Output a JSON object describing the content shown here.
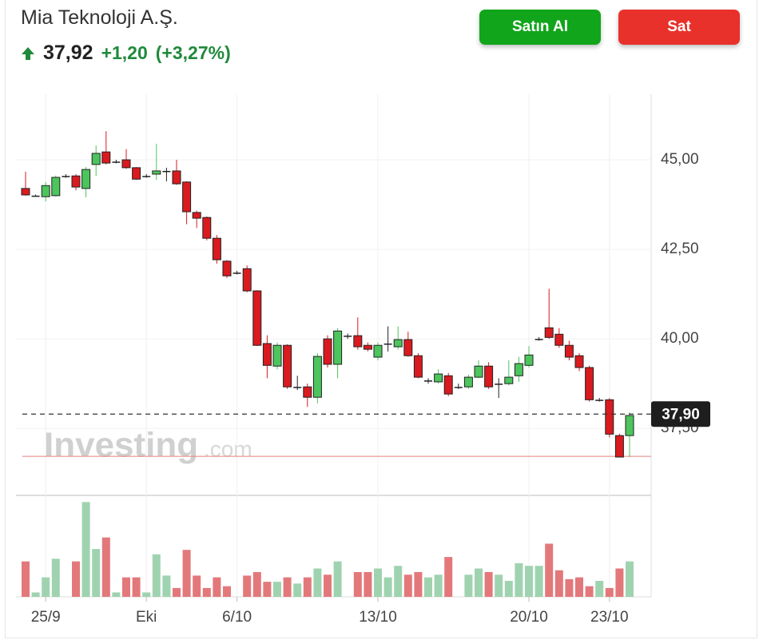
{
  "header": {
    "title": "Mia Teknoloji A.Ş.",
    "price": "37,92",
    "change": "+1,20",
    "change_percent": "(+3,27%)",
    "buy_button": "Satın Al",
    "sell_button": "Sat"
  },
  "chart_data": {
    "type": "candlestick",
    "watermark": "Investing",
    "watermark_suffix": ".com",
    "categories": [
      null,
      null,
      "25/9",
      null,
      null,
      null,
      null,
      null,
      null,
      null,
      null,
      null,
      "Eki",
      null,
      null,
      null,
      null,
      null,
      null,
      null,
      null,
      "6/10",
      null,
      null,
      null,
      null,
      null,
      null,
      null,
      null,
      null,
      null,
      null,
      null,
      null,
      "13/10",
      null,
      null,
      null,
      null,
      null,
      null,
      null,
      null,
      null,
      null,
      null,
      null,
      null,
      null,
      "20/10",
      null,
      null,
      null,
      null,
      null,
      null,
      null,
      "23/10",
      null,
      null
    ],
    "open": [
      44.2,
      44.0,
      43.97,
      44.0,
      44.55,
      44.55,
      44.2,
      44.87,
      45.22,
      44.95,
      45.0,
      44.78,
      44.55,
      44.6,
      44.69,
      44.69,
      44.38,
      43.53,
      43.39,
      42.81,
      42.17,
      41.85,
      41.96,
      41.34,
      39.87,
      39.24,
      39.82,
      38.66,
      38.66,
      38.37,
      40.0,
      39.29,
      40.09,
      40.09,
      39.82,
      39.49,
      39.87,
      39.78,
      39.98,
      39.53,
      38.84,
      38.8,
      38.97,
      38.66,
      38.66,
      38.93,
      39.24,
      38.75,
      38.75,
      38.97,
      39.26,
      40.0,
      40.31,
      40.13,
      39.82,
      39.53,
      39.2,
      38.3,
      38.3,
      37.3,
      37.3
    ],
    "high": [
      44.67,
      44.03,
      44.38,
      44.56,
      44.6,
      44.6,
      44.8,
      45.4,
      45.8,
      45.0,
      45.3,
      44.8,
      44.6,
      45.45,
      44.78,
      45.0,
      44.4,
      43.58,
      43.42,
      42.9,
      42.2,
      41.9,
      42.05,
      41.36,
      40.1,
      39.9,
      39.85,
      38.97,
      38.75,
      39.6,
      40.1,
      40.3,
      40.15,
      40.6,
      39.9,
      39.9,
      40.35,
      40.35,
      40.2,
      39.6,
      38.9,
      39.15,
      39.05,
      38.75,
      39.0,
      39.4,
      39.35,
      38.9,
      39.4,
      39.5,
      39.8,
      40.05,
      41.4,
      40.3,
      39.95,
      39.6,
      39.25,
      38.35,
      38.35,
      37.35,
      37.95
    ],
    "low": [
      44.0,
      43.97,
      43.84,
      43.97,
      44.5,
      44.15,
      43.95,
      44.55,
      44.87,
      44.9,
      44.75,
      44.44,
      44.5,
      44.44,
      44.4,
      44.3,
      43.2,
      43.1,
      42.75,
      42.1,
      41.7,
      41.8,
      41.3,
      39.8,
      38.9,
      39.15,
      38.6,
      38.57,
      38.1,
      38.2,
      39.2,
      38.9,
      40.0,
      39.7,
      39.65,
      39.4,
      39.65,
      39.7,
      39.5,
      38.9,
      38.75,
      38.75,
      38.4,
      38.6,
      38.6,
      38.9,
      38.6,
      38.35,
      38.7,
      38.8,
      39.2,
      39.95,
      40.0,
      39.75,
      39.4,
      39.1,
      38.25,
      38.25,
      37.25,
      36.7,
      36.7
    ],
    "close": [
      44.02,
      44.0,
      44.28,
      44.51,
      44.55,
      44.24,
      44.73,
      45.18,
      44.91,
      44.95,
      44.78,
      44.46,
      44.55,
      44.69,
      44.69,
      44.33,
      43.55,
      43.37,
      42.81,
      42.21,
      41.76,
      41.85,
      41.34,
      39.82,
      39.26,
      39.82,
      38.66,
      38.66,
      38.37,
      39.51,
      39.29,
      40.22,
      40.09,
      39.78,
      39.71,
      39.82,
      39.87,
      39.98,
      39.53,
      38.93,
      38.84,
      39.02,
      38.46,
      38.66,
      38.93,
      39.24,
      38.66,
      38.75,
      38.93,
      39.31,
      39.55,
      40.0,
      40.04,
      39.82,
      39.49,
      39.2,
      38.3,
      38.3,
      37.34,
      36.7,
      37.86
    ],
    "volume": [
      40,
      5,
      22,
      43,
      0,
      40,
      107,
      54,
      67,
      5,
      22,
      22,
      5,
      48,
      24,
      10,
      53,
      24,
      10,
      22,
      12,
      0,
      24,
      28,
      17,
      17,
      22,
      15,
      22,
      32,
      25,
      40,
      0,
      28,
      28,
      32,
      22,
      35,
      25,
      28,
      22,
      25,
      45,
      0,
      25,
      32,
      28,
      25,
      18,
      38,
      35,
      35,
      60,
      30,
      20,
      22,
      12,
      18,
      10,
      32,
      40
    ],
    "volume_lim": [
      0,
      110
    ],
    "up_color": "#4cc55c",
    "down_color": "#d91a1f",
    "up_volume_color": "#9fd3b0",
    "down_volume_color": "#e3787b",
    "ylim": [
      35.63,
      46.83
    ],
    "yticks": [
      {
        "value": 37.5,
        "label": "37,50"
      },
      {
        "value": 40,
        "label": "40,00"
      },
      {
        "value": 42.5,
        "label": "42,50"
      },
      {
        "value": 45,
        "label": "45,00"
      }
    ],
    "grid": true,
    "current_price": {
      "value": 37.9,
      "label": "37,90"
    },
    "reference_line": 36.72
  }
}
